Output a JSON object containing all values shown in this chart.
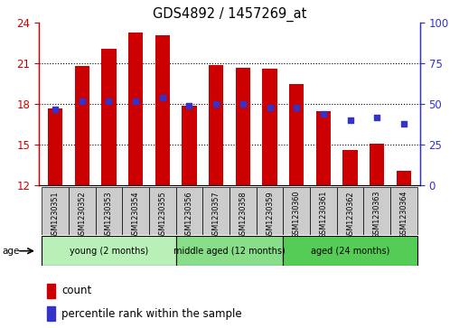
{
  "title": "GDS4892 / 1457269_at",
  "samples": [
    "GSM1230351",
    "GSM1230352",
    "GSM1230353",
    "GSM1230354",
    "GSM1230355",
    "GSM1230356",
    "GSM1230357",
    "GSM1230358",
    "GSM1230359",
    "GSM1230360",
    "GSM1230361",
    "GSM1230362",
    "GSM1230363",
    "GSM1230364"
  ],
  "counts": [
    17.7,
    20.8,
    22.1,
    23.3,
    23.1,
    17.9,
    20.9,
    20.7,
    20.6,
    19.5,
    17.5,
    14.6,
    15.1,
    13.1
  ],
  "percentiles": [
    47,
    52,
    52,
    52,
    54,
    49,
    50,
    50,
    48,
    48,
    44,
    40,
    42,
    38
  ],
  "y_min": 12,
  "y_max": 24,
  "y_ticks": [
    12,
    15,
    18,
    21,
    24
  ],
  "y2_ticks": [
    0,
    25,
    50,
    75,
    100
  ],
  "bar_color": "#CC0000",
  "dot_color": "#3333CC",
  "bar_width": 0.55,
  "groups": [
    {
      "label": "young (2 months)",
      "start": 0,
      "end": 5
    },
    {
      "label": "middle aged (12 months)",
      "start": 5,
      "end": 9
    },
    {
      "label": "aged (24 months)",
      "start": 9,
      "end": 14
    }
  ],
  "group_colors": [
    "#b8f0b8",
    "#88dd88",
    "#55cc55"
  ],
  "sample_box_color": "#cccccc",
  "age_label": "age",
  "legend_count": "count",
  "legend_percentile": "percentile rank within the sample",
  "bg_color": "#ffffff"
}
